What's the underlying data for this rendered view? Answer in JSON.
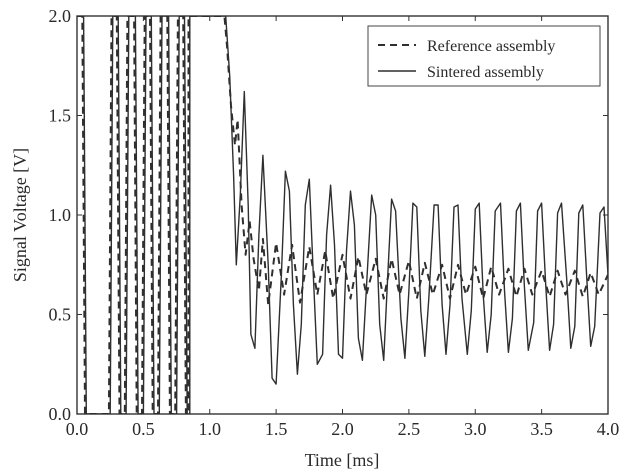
{
  "chart_data": {
    "type": "line",
    "title": "",
    "xlabel": "Time [ms]",
    "ylabel": "Signal Voltage [V]",
    "xlim": [
      0.0,
      4.0
    ],
    "ylim": [
      0.0,
      2.0
    ],
    "xticks": [
      "0.0",
      "0.5",
      "1.0",
      "1.5",
      "2.0",
      "2.5",
      "3.0",
      "3.5",
      "4.0"
    ],
    "yticks": [
      "0.0",
      "0.5",
      "1.0",
      "1.5",
      "2.0"
    ],
    "grid": false,
    "legend_position": "top-right",
    "oscillation_frequency_khz": 8,
    "series": [
      {
        "name": "Reference assembly",
        "line_style": "dashed",
        "color": "#2f2f2f",
        "points": [
          [
            0.0,
            2.0
          ],
          [
            0.04,
            2.0
          ],
          [
            0.06,
            0.0
          ],
          [
            0.24,
            0.0
          ],
          [
            0.26,
            2.0
          ],
          [
            0.3,
            2.0
          ],
          [
            0.32,
            0.0
          ],
          [
            0.36,
            0.0
          ],
          [
            0.38,
            2.0
          ],
          [
            0.43,
            2.0
          ],
          [
            0.45,
            0.0
          ],
          [
            0.49,
            0.0
          ],
          [
            0.51,
            2.0
          ],
          [
            0.55,
            2.0
          ],
          [
            0.57,
            0.0
          ],
          [
            0.61,
            0.0
          ],
          [
            0.63,
            2.0
          ],
          [
            0.68,
            2.0
          ],
          [
            0.7,
            0.0
          ],
          [
            0.74,
            0.0
          ],
          [
            0.76,
            2.0
          ],
          [
            0.8,
            2.0
          ],
          [
            0.82,
            0.0
          ],
          [
            0.84,
            0.0
          ],
          [
            0.84,
            2.0
          ],
          [
            1.11,
            2.0
          ],
          [
            1.13,
            1.85
          ],
          [
            1.16,
            1.55
          ],
          [
            1.19,
            1.35
          ],
          [
            1.21,
            1.48
          ],
          [
            1.24,
            1.05
          ],
          [
            1.27,
            0.8
          ],
          [
            1.3,
            0.97
          ],
          [
            1.33,
            0.78
          ],
          [
            1.37,
            0.62
          ],
          [
            1.4,
            0.88
          ],
          [
            1.44,
            0.55
          ],
          [
            1.5,
            0.86
          ],
          [
            1.56,
            0.6
          ],
          [
            1.62,
            0.85
          ],
          [
            1.68,
            0.56
          ],
          [
            1.75,
            0.84
          ],
          [
            1.81,
            0.6
          ],
          [
            1.87,
            0.82
          ],
          [
            1.93,
            0.58
          ],
          [
            2.0,
            0.8
          ],
          [
            2.06,
            0.58
          ],
          [
            2.12,
            0.79
          ],
          [
            2.18,
            0.6
          ],
          [
            2.25,
            0.78
          ],
          [
            2.31,
            0.58
          ],
          [
            2.37,
            0.78
          ],
          [
            2.43,
            0.6
          ],
          [
            2.5,
            0.77
          ],
          [
            2.56,
            0.58
          ],
          [
            2.62,
            0.76
          ],
          [
            2.68,
            0.6
          ],
          [
            2.75,
            0.75
          ],
          [
            2.81,
            0.58
          ],
          [
            2.87,
            0.75
          ],
          [
            2.93,
            0.6
          ],
          [
            3.0,
            0.74
          ],
          [
            3.06,
            0.58
          ],
          [
            3.12,
            0.74
          ],
          [
            3.18,
            0.6
          ],
          [
            3.25,
            0.73
          ],
          [
            3.31,
            0.59
          ],
          [
            3.37,
            0.73
          ],
          [
            3.43,
            0.6
          ],
          [
            3.5,
            0.72
          ],
          [
            3.56,
            0.59
          ],
          [
            3.62,
            0.72
          ],
          [
            3.68,
            0.6
          ],
          [
            3.75,
            0.72
          ],
          [
            3.81,
            0.59
          ],
          [
            3.87,
            0.71
          ],
          [
            3.93,
            0.6
          ],
          [
            4.0,
            0.7
          ]
        ]
      },
      {
        "name": "Sintered assembly",
        "line_style": "solid",
        "color": "#2f2f2f",
        "points": [
          [
            0.0,
            2.0
          ],
          [
            0.05,
            2.0
          ],
          [
            0.07,
            0.0
          ],
          [
            0.25,
            0.0
          ],
          [
            0.27,
            2.0
          ],
          [
            0.31,
            2.0
          ],
          [
            0.33,
            0.0
          ],
          [
            0.37,
            0.0
          ],
          [
            0.39,
            2.0
          ],
          [
            0.44,
            2.0
          ],
          [
            0.46,
            0.0
          ],
          [
            0.5,
            0.0
          ],
          [
            0.52,
            2.0
          ],
          [
            0.56,
            2.0
          ],
          [
            0.58,
            0.0
          ],
          [
            0.62,
            0.0
          ],
          [
            0.64,
            2.0
          ],
          [
            0.69,
            2.0
          ],
          [
            0.71,
            0.0
          ],
          [
            0.75,
            0.0
          ],
          [
            0.77,
            2.0
          ],
          [
            0.81,
            2.0
          ],
          [
            0.83,
            0.0
          ],
          [
            0.85,
            0.0
          ],
          [
            0.85,
            2.0
          ],
          [
            1.12,
            2.0
          ],
          [
            1.15,
            1.7
          ],
          [
            1.18,
            1.2
          ],
          [
            1.2,
            0.75
          ],
          [
            1.23,
            1.1
          ],
          [
            1.26,
            1.62
          ],
          [
            1.29,
            1.05
          ],
          [
            1.31,
            0.4
          ],
          [
            1.34,
            0.33
          ],
          [
            1.37,
            0.9
          ],
          [
            1.4,
            1.3
          ],
          [
            1.44,
            0.75
          ],
          [
            1.47,
            0.18
          ],
          [
            1.5,
            0.15
          ],
          [
            1.54,
            0.7
          ],
          [
            1.57,
            1.22
          ],
          [
            1.6,
            1.12
          ],
          [
            1.63,
            0.55
          ],
          [
            1.66,
            0.2
          ],
          [
            1.69,
            0.45
          ],
          [
            1.72,
            1.05
          ],
          [
            1.75,
            1.18
          ],
          [
            1.78,
            0.7
          ],
          [
            1.81,
            0.25
          ],
          [
            1.85,
            0.3
          ],
          [
            1.88,
            0.9
          ],
          [
            1.91,
            1.15
          ],
          [
            1.94,
            0.85
          ],
          [
            1.97,
            0.3
          ],
          [
            2.0,
            0.28
          ],
          [
            2.03,
            0.82
          ],
          [
            2.06,
            1.12
          ],
          [
            2.09,
            0.95
          ],
          [
            2.12,
            0.38
          ],
          [
            2.15,
            0.27
          ],
          [
            2.19,
            0.75
          ],
          [
            2.22,
            1.1
          ],
          [
            2.25,
            1.0
          ],
          [
            2.28,
            0.45
          ],
          [
            2.31,
            0.27
          ],
          [
            2.34,
            0.68
          ],
          [
            2.37,
            1.08
          ],
          [
            2.4,
            1.02
          ],
          [
            2.44,
            0.48
          ],
          [
            2.47,
            0.28
          ],
          [
            2.5,
            0.62
          ],
          [
            2.53,
            1.06
          ],
          [
            2.56,
            1.04
          ],
          [
            2.59,
            0.52
          ],
          [
            2.62,
            0.29
          ],
          [
            2.65,
            0.58
          ],
          [
            2.69,
            1.05
          ],
          [
            2.72,
            1.05
          ],
          [
            2.75,
            0.55
          ],
          [
            2.78,
            0.3
          ],
          [
            2.81,
            0.55
          ],
          [
            2.84,
            1.04
          ],
          [
            2.87,
            1.05
          ],
          [
            2.9,
            0.58
          ],
          [
            2.94,
            0.3
          ],
          [
            2.97,
            0.52
          ],
          [
            3.0,
            1.03
          ],
          [
            3.03,
            1.06
          ],
          [
            3.06,
            0.6
          ],
          [
            3.09,
            0.31
          ],
          [
            3.12,
            0.5
          ],
          [
            3.15,
            1.02
          ],
          [
            3.19,
            1.06
          ],
          [
            3.22,
            0.62
          ],
          [
            3.25,
            0.31
          ],
          [
            3.28,
            0.48
          ],
          [
            3.31,
            1.02
          ],
          [
            3.34,
            1.06
          ],
          [
            3.37,
            0.64
          ],
          [
            3.4,
            0.32
          ],
          [
            3.44,
            0.46
          ],
          [
            3.47,
            1.02
          ],
          [
            3.5,
            1.06
          ],
          [
            3.53,
            0.66
          ],
          [
            3.56,
            0.32
          ],
          [
            3.59,
            0.45
          ],
          [
            3.62,
            1.01
          ],
          [
            3.65,
            1.06
          ],
          [
            3.69,
            0.67
          ],
          [
            3.72,
            0.33
          ],
          [
            3.75,
            0.44
          ],
          [
            3.78,
            1.01
          ],
          [
            3.81,
            1.05
          ],
          [
            3.84,
            0.68
          ],
          [
            3.87,
            0.34
          ],
          [
            3.9,
            0.44
          ],
          [
            3.94,
            1.01
          ],
          [
            3.97,
            1.04
          ],
          [
            4.0,
            0.7
          ]
        ]
      }
    ]
  }
}
